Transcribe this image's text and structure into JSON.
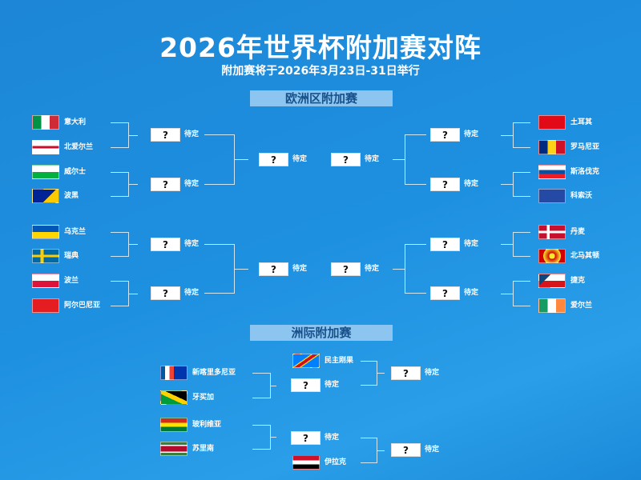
{
  "title": "2026年世界杯附加赛对阵",
  "subtitle": "附加赛将于2026年3月23日-31日举行",
  "europe": {
    "label": "欧洲区附加赛",
    "left": [
      "意大利",
      "北爱尔兰",
      "威尔士",
      "波黑",
      "乌克兰",
      "瑞典",
      "波兰",
      "阿尔巴尼亚"
    ],
    "right": [
      "土耳其",
      "罗马尼亚",
      "斯洛伐克",
      "科索沃",
      "丹麦",
      "北马其顿",
      "捷克",
      "爱尔兰"
    ]
  },
  "intercontinental": {
    "label": "洲际附加赛",
    "left": [
      "新喀里多尼亚",
      "牙买加",
      "玻利维亚",
      "苏里南"
    ],
    "seeded": [
      "民主刚果",
      "伊拉克"
    ]
  },
  "placeholder": "?",
  "tbd": "待定",
  "flags": {
    "意大利": "italy-flag-icon",
    "北爱尔兰": "northern-ireland-flag-icon",
    "威尔士": "wales-flag-icon",
    "波黑": "bosnia-flag-icon",
    "乌克兰": "ukraine-flag-icon",
    "瑞典": "sweden-flag-icon",
    "波兰": "poland-flag-icon",
    "阿尔巴尼亚": "albania-flag-icon",
    "土耳其": "turkey-flag-icon",
    "罗马尼亚": "romania-flag-icon",
    "斯洛伐克": "slovakia-flag-icon",
    "科索沃": "kosovo-flag-icon",
    "丹麦": "denmark-flag-icon",
    "北马其顿": "north-macedonia-flag-icon",
    "捷克": "czech-flag-icon",
    "爱尔兰": "ireland-flag-icon",
    "新喀里多尼亚": "new-caledonia-flag-icon",
    "牙买加": "jamaica-flag-icon",
    "玻利维亚": "bolivia-flag-icon",
    "苏里南": "suriname-flag-icon",
    "民主刚果": "dr-congo-flag-icon",
    "伊拉克": "iraq-flag-icon"
  }
}
